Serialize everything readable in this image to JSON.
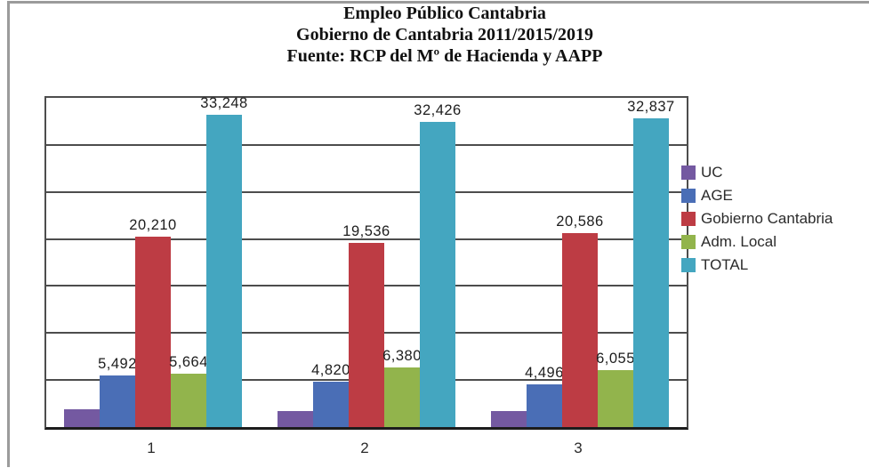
{
  "title": {
    "line1": "Empleo Público Cantabria",
    "line2": "Gobierno de Cantabria 2011/2015/2019",
    "line3": "Fuente: RCP del Mº de Hacienda y AAPP"
  },
  "chart_data": {
    "type": "bar",
    "categories": [
      "1",
      "2",
      "3"
    ],
    "series": [
      {
        "name": "UC",
        "color": "#7459A1",
        "values": [
          1882,
          1690,
          1700
        ],
        "labels": [
          "",
          "",
          ""
        ]
      },
      {
        "name": "AGE",
        "color": "#4A6EB6",
        "values": [
          5492,
          4820,
          4496
        ],
        "labels": [
          "5,492",
          "4,820",
          "4,496"
        ]
      },
      {
        "name": "Gobierno Cantabria",
        "color": "#BD3C44",
        "values": [
          20210,
          19536,
          20586
        ],
        "labels": [
          "20,210",
          "19,536",
          "20,586"
        ]
      },
      {
        "name": "Adm. Local",
        "color": "#92B44C",
        "values": [
          5664,
          6380,
          6055
        ],
        "labels": [
          "5,664",
          "6,380",
          "6,055"
        ]
      },
      {
        "name": "TOTAL",
        "color": "#44A6C0",
        "values": [
          33248,
          32426,
          32837
        ],
        "labels": [
          "33,248",
          "32,426",
          "32,837"
        ]
      }
    ],
    "ylim": [
      0,
      35000
    ],
    "gridline_step": 5000,
    "grid": true,
    "legend_position": "right",
    "y_axis_labels_shown": false,
    "note": "UC bars carry no data labels in the image; UC values estimated from bar heights vs gridlines."
  },
  "colors": {
    "gridline": "#4d4d4d",
    "axis": "#1c1c1c",
    "frame_border": "#9b9b9b",
    "label_text": "#1d1d1d"
  }
}
